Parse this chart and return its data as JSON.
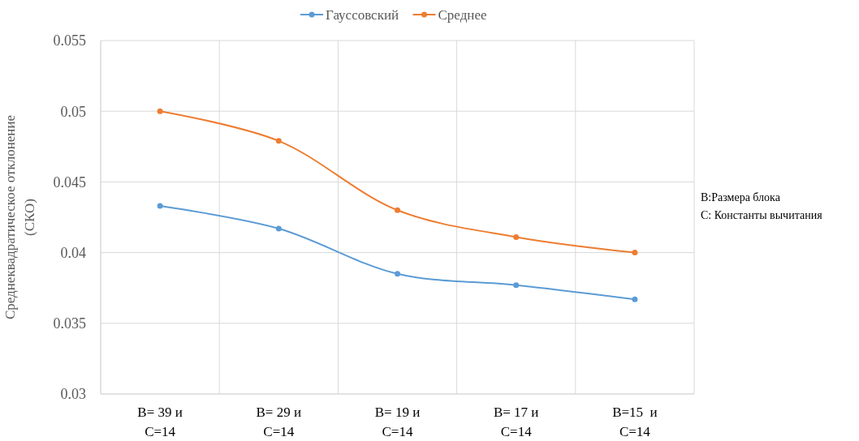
{
  "chart_data": {
    "type": "line",
    "ylabel": "Среднеквадратическое отклонение (СКО)",
    "categories": [
      "B= 39 и\nC=14",
      "B= 29 и\nC=14",
      "B= 19 и\nC=14",
      "B= 17 и\nC=14",
      "B=15  и\nC=14"
    ],
    "series": [
      {
        "name": "Гауссовский",
        "color": "#5b9bd5",
        "values": [
          0.0433,
          0.0417,
          0.0385,
          0.0377,
          0.0367
        ]
      },
      {
        "name": "Среднее",
        "color": "#ed7d31",
        "values": [
          0.05,
          0.0479,
          0.043,
          0.0411,
          0.04
        ]
      }
    ],
    "ylim": [
      0.03,
      0.055
    ],
    "yticks": [
      0.03,
      0.035,
      0.04,
      0.045,
      0.05,
      0.055
    ],
    "grid": true,
    "legend": "top",
    "marker": "circle",
    "line_style": "solid",
    "annotations": [
      "B:Размера блока",
      "C: Константы вычитания"
    ]
  }
}
